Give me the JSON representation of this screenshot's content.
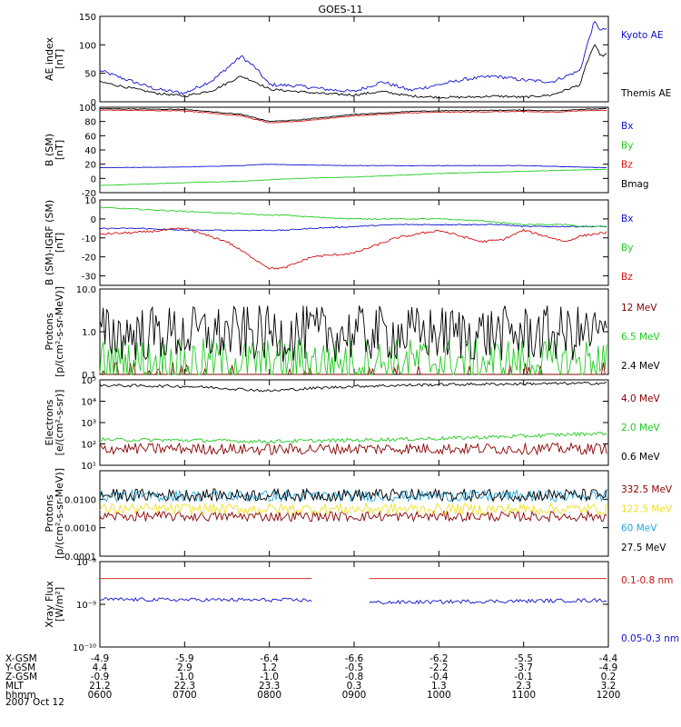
{
  "title": "GOES-11",
  "date_label": "2007 Oct 12",
  "colors": {
    "blue": "#1010d0",
    "black": "#000000",
    "green": "#22cc22",
    "red": "#d01010",
    "darkred": "#880000",
    "cyan": "#20a8e0",
    "yellow": "#f0e020"
  },
  "ephemeris": {
    "row_labels": [
      "X-GSM",
      "Y-GSM",
      "Z-GSM",
      "MLT",
      "hhmm"
    ],
    "columns": [
      {
        "x-gsm": "-4.9",
        "y-gsm": "4.4",
        "z-gsm": "-0.9",
        "mlt": "21.2",
        "hhmm": "0600"
      },
      {
        "x-gsm": "-5.9",
        "y-gsm": "2.9",
        "z-gsm": "-1.0",
        "mlt": "22.3",
        "hhmm": "0700"
      },
      {
        "x-gsm": "-6.4",
        "y-gsm": "1.2",
        "z-gsm": "-1.0",
        "mlt": "23.3",
        "hhmm": "0800"
      },
      {
        "x-gsm": "-6.6",
        "y-gsm": "-0.5",
        "z-gsm": "-0.8",
        "mlt": "0.3",
        "hhmm": "0900"
      },
      {
        "x-gsm": "-6.2",
        "y-gsm": "-2.2",
        "z-gsm": "-0.4",
        "mlt": "1.3",
        "hhmm": "1000"
      },
      {
        "x-gsm": "-5.5",
        "y-gsm": "-3.7",
        "z-gsm": "-0.1",
        "mlt": "2.3",
        "hhmm": "1100"
      },
      {
        "x-gsm": "-4.4",
        "y-gsm": "-4.9",
        "z-gsm": "0.2",
        "mlt": "3.2",
        "hhmm": "1200"
      }
    ]
  },
  "chart_data": [
    {
      "type": "line",
      "panel": "ae",
      "scale": "linear",
      "ylabel": [
        "AE index",
        "[nT]"
      ],
      "ylim": [
        0,
        150
      ],
      "ticks": [
        0,
        50,
        100,
        150
      ],
      "tick_labels": [
        "0",
        "50",
        "100",
        "150"
      ],
      "x": [
        "0600",
        "0620",
        "0640",
        "0700",
        "0720",
        "0740",
        "0750",
        "0800",
        "0820",
        "0840",
        "0900",
        "0920",
        "0940",
        "1000",
        "1020",
        "1040",
        "1100",
        "1120",
        "1140",
        "1145",
        "1150",
        "1155",
        "1200"
      ],
      "series": [
        {
          "name": "Kyoto AE",
          "color": "blue",
          "values": [
            55,
            38,
            22,
            15,
            38,
            80,
            60,
            30,
            28,
            22,
            18,
            35,
            20,
            30,
            40,
            45,
            38,
            35,
            55,
            100,
            140,
            125,
            130
          ],
          "noise": 3
        },
        {
          "name": "Themis AE",
          "color": "black",
          "values": [
            35,
            25,
            15,
            10,
            20,
            45,
            35,
            22,
            18,
            14,
            12,
            18,
            10,
            8,
            8,
            10,
            8,
            12,
            30,
            70,
            100,
            80,
            85
          ],
          "noise": 2
        }
      ],
      "legend": [
        "Kyoto AE",
        "Themis AE"
      ]
    },
    {
      "type": "line",
      "panel": "bsm",
      "scale": "linear",
      "ylabel": [
        "B (SM)",
        "[nT]"
      ],
      "ylim": [
        -20,
        100
      ],
      "ticks": [
        -20,
        0,
        20,
        40,
        60,
        80,
        100
      ],
      "tick_labels": [
        "-20",
        "0",
        "20",
        "40",
        "60",
        "80",
        "100"
      ],
      "x": [
        "0600",
        "0700",
        "0740",
        "0800",
        "0820",
        "0900",
        "0940",
        "1000",
        "1100",
        "1120",
        "1140",
        "1200"
      ],
      "series": [
        {
          "name": "Bx",
          "color": "blue",
          "values": [
            15,
            16,
            18,
            20,
            19,
            18,
            18,
            18,
            18,
            17,
            16,
            15
          ],
          "noise": 0.3
        },
        {
          "name": "By",
          "color": "green",
          "values": [
            -10,
            -6,
            -4,
            -2,
            0,
            2,
            5,
            7,
            10,
            11,
            12,
            13
          ],
          "noise": 0.3
        },
        {
          "name": "Bz",
          "color": "red",
          "values": [
            96,
            95,
            88,
            78,
            80,
            88,
            92,
            93,
            94,
            93,
            95,
            96
          ],
          "noise": 0.5
        },
        {
          "name": "Bmag",
          "color": "black",
          "values": [
            98,
            97,
            90,
            80,
            82,
            90,
            94,
            95,
            96,
            95,
            97,
            98
          ],
          "noise": 0.5
        }
      ],
      "legend": [
        "Bx",
        "By",
        "Bz",
        "Bmag"
      ]
    },
    {
      "type": "line",
      "panel": "bsmiigrf",
      "scale": "linear",
      "ylabel": [
        "B (SM)-IGRF (SM)",
        "[nT]"
      ],
      "ylim": [
        -35,
        10
      ],
      "ticks": [
        -30,
        -20,
        -10,
        0,
        10
      ],
      "tick_labels": [
        "-30",
        "-20",
        "-10",
        "0",
        "10"
      ],
      "x": [
        "0600",
        "0630",
        "0700",
        "0730",
        "0800",
        "0810",
        "0830",
        "0900",
        "0930",
        "1000",
        "1030",
        "1045",
        "1100",
        "1130",
        "1140",
        "1200"
      ],
      "series": [
        {
          "name": "Bx",
          "color": "blue",
          "values": [
            -5,
            -5,
            -6,
            -6,
            -6,
            -6,
            -5,
            -4,
            -3,
            -3,
            -3,
            -3,
            -4,
            -4,
            -4,
            -4
          ],
          "noise": 0.3
        },
        {
          "name": "By",
          "color": "green",
          "values": [
            6,
            5,
            4,
            3,
            2,
            2,
            1,
            0,
            0,
            0,
            -1,
            -2,
            -3,
            -3,
            -4,
            -4
          ],
          "noise": 0.3
        },
        {
          "name": "Bz",
          "color": "red",
          "values": [
            -8,
            -7,
            -5,
            -12,
            -26,
            -26,
            -20,
            -18,
            -10,
            -6,
            -12,
            -11,
            -6,
            -12,
            -9,
            -7
          ],
          "noise": 0.6
        }
      ],
      "legend": [
        "Bx",
        "By",
        "Bz"
      ]
    },
    {
      "type": "line",
      "panel": "protons_low",
      "scale": "log",
      "ylabel": [
        "Protons",
        "[p/(cm²-s-sr-MeV)]"
      ],
      "ylim": [
        0.1,
        10
      ],
      "ticks": [
        0.1,
        1,
        10
      ],
      "tick_labels": [
        "0.1",
        "1.0",
        "10.0"
      ],
      "x": [
        "0600",
        "1200"
      ],
      "series": [
        {
          "name": "12 MeV",
          "color": "darkred",
          "values": [
            0.1,
            0.1
          ],
          "noise_log": 0.0,
          "sparse": true
        },
        {
          "name": "6.5 MeV",
          "color": "green",
          "values": [
            0.2,
            0.2
          ],
          "noise_log": 0.25
        },
        {
          "name": "2.4 MeV",
          "color": "black",
          "values": [
            0.9,
            0.9
          ],
          "noise_log": 0.3
        }
      ],
      "legend": [
        "12 MeV",
        "6.5 MeV",
        "2.4 MeV"
      ]
    },
    {
      "type": "line",
      "panel": "electrons",
      "scale": "log",
      "ylabel": [
        "Electrons",
        "[e/(cm²-s-sr)]"
      ],
      "ylim": [
        10,
        100000
      ],
      "ticks": [
        10,
        100,
        1000,
        10000,
        100000
      ],
      "tick_labels": [
        "10¹",
        "10²",
        "10³",
        "10⁴",
        "10⁵"
      ],
      "x": [
        "0600",
        "0700",
        "0800",
        "0900",
        "1000",
        "1100",
        "1200"
      ],
      "series": [
        {
          "name": "4.0 MeV",
          "color": "darkred",
          "values": [
            60,
            60,
            55,
            60,
            60,
            60,
            60
          ],
          "noise_log": 0.12
        },
        {
          "name": "2.0 MeV",
          "color": "green",
          "values": [
            160,
            150,
            130,
            150,
            180,
            230,
            320
          ],
          "noise_log": 0.04
        },
        {
          "name": "0.6 MeV",
          "color": "black",
          "values": [
            55000,
            50000,
            30000,
            50000,
            60000,
            65000,
            70000
          ],
          "noise_log": 0.03
        }
      ],
      "legend": [
        "4.0 MeV",
        "2.0 MeV",
        "0.6 MeV"
      ]
    },
    {
      "type": "line",
      "panel": "protons_high",
      "scale": "log",
      "ylabel": [
        "Protons",
        "[p/(cm²-s-sr-MeV)]"
      ],
      "ylim": [
        0.0001,
        0.1
      ],
      "ticks": [
        0.0001,
        0.001,
        0.01
      ],
      "tick_labels": [
        "0.0001",
        "0.0010",
        "0.0100"
      ],
      "x": [
        "0600",
        "1200"
      ],
      "series": [
        {
          "name": "332.5 MeV",
          "color": "darkred",
          "values": [
            0.0025,
            0.0025
          ],
          "noise_log": 0.08
        },
        {
          "name": "122.5 MeV",
          "color": "yellow",
          "values": [
            0.0045,
            0.0045
          ],
          "noise_log": 0.09
        },
        {
          "name": "60 MeV",
          "color": "cyan",
          "values": [
            0.013,
            0.013
          ],
          "noise_log": 0.09
        },
        {
          "name": "27.5 MeV",
          "color": "black",
          "values": [
            0.014,
            0.014
          ],
          "noise_log": 0.1
        }
      ],
      "legend": [
        "332.5 MeV",
        "122.5 MeV",
        "60 MeV",
        "27.5 MeV"
      ]
    },
    {
      "type": "line",
      "panel": "xray",
      "scale": "log",
      "ylabel": [
        "Xray Flux",
        "[W/m²]"
      ],
      "ylim": [
        1e-10,
        1e-08
      ],
      "ticks": [
        1e-10,
        1e-09,
        1e-08
      ],
      "tick_labels": [
        "10⁻¹⁰",
        "10⁻⁹",
        "10⁻⁸"
      ],
      "x": [
        "0600",
        "0830",
        "0910",
        "1200"
      ],
      "gap": [
        "0830",
        "0910"
      ],
      "series": [
        {
          "name": "0.1-0.8 nm",
          "color": "red",
          "values": [
            4e-09,
            4e-09,
            4e-09,
            4e-09
          ],
          "noise_log": 0.0
        },
        {
          "name": "0.05-0.3 nm",
          "color": "blue",
          "values": [
            1.3e-09,
            1.25e-09,
            1.1e-09,
            1.25e-09
          ],
          "noise_log": 0.02
        }
      ],
      "legend": [
        "0.1-0.8 nm",
        "0.05-0.3 nm"
      ]
    }
  ]
}
